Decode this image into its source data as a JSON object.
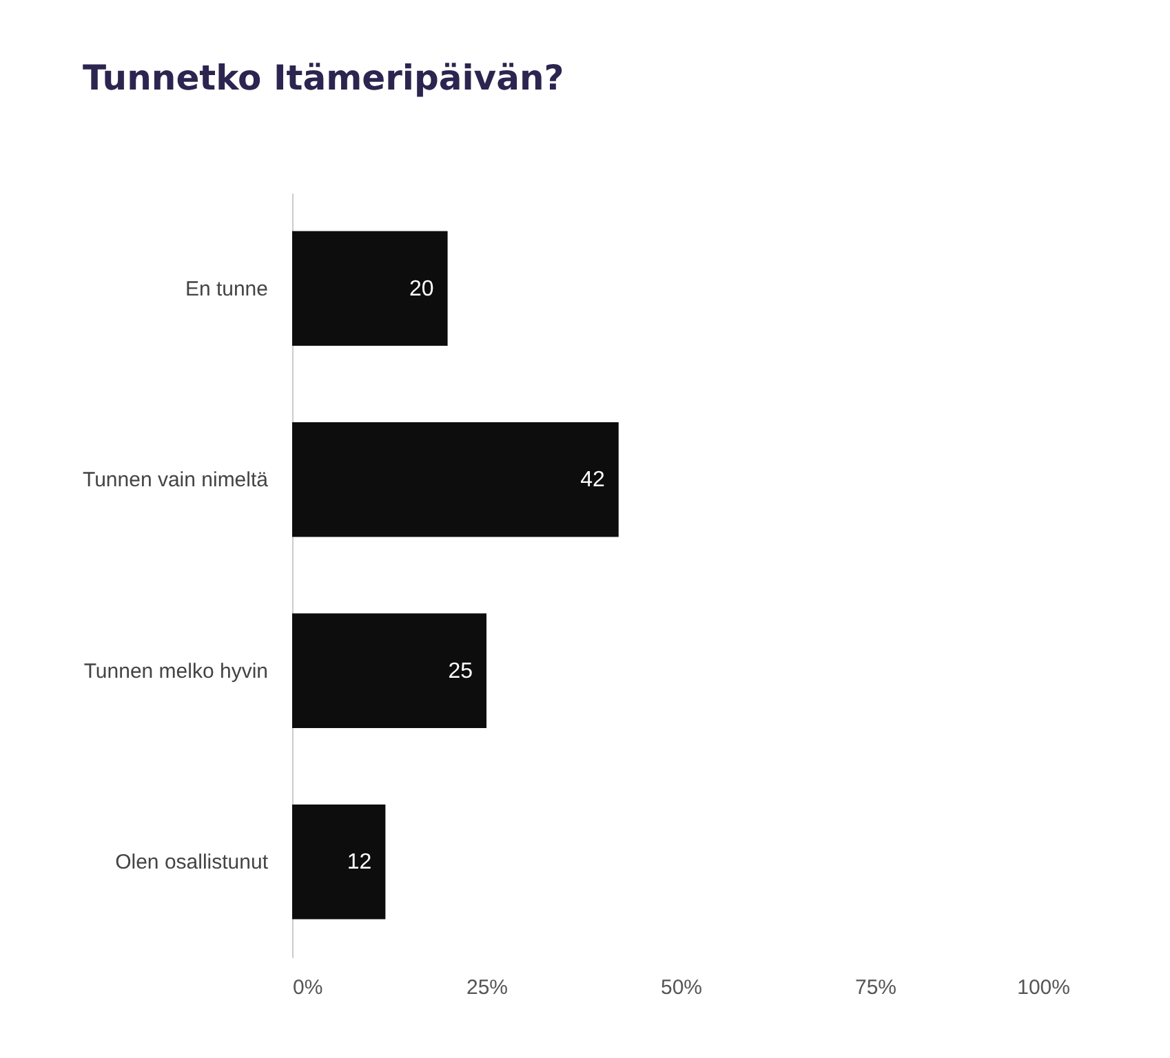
{
  "chart_data": {
    "type": "bar",
    "orientation": "horizontal",
    "title": "Tunnetko Itämeripäivän?",
    "categories": [
      "En tunne",
      "Tunnen vain nimeltä",
      "Tunnen melko hyvin",
      "Olen osallistunut"
    ],
    "values": [
      20,
      42,
      25,
      12
    ],
    "color": "#0d0d0d",
    "xlim": [
      0,
      100
    ],
    "xticks": [
      {
        "value": 0,
        "label": "0%"
      },
      {
        "value": 25,
        "label": "25%"
      },
      {
        "value": 50,
        "label": "50%"
      },
      {
        "value": 75,
        "label": "75%"
      },
      {
        "value": 100,
        "label": "100%"
      }
    ],
    "data_labels": true
  }
}
